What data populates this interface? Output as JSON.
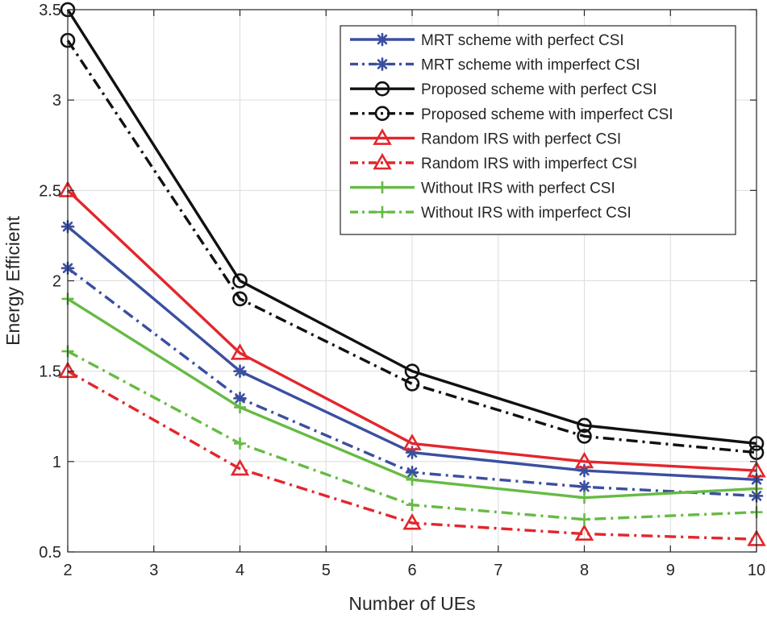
{
  "chart_data": {
    "type": "line",
    "title": "",
    "xlabel": "Number of UEs",
    "ylabel": "Energy Efficient",
    "xlim": [
      2,
      10
    ],
    "ylim": [
      0.5,
      3.5
    ],
    "xticks": [
      2,
      3,
      4,
      5,
      6,
      7,
      8,
      9,
      10
    ],
    "yticks": [
      0.5,
      1,
      1.5,
      2,
      2.5,
      3,
      3.5
    ],
    "xtick_labels": [
      "2",
      "3",
      "4",
      "5",
      "6",
      "7",
      "8",
      "9",
      "10"
    ],
    "ytick_labels": [
      "0.5",
      "1",
      "1.5",
      "2",
      "2.5",
      "3",
      "3.5"
    ],
    "grid": true,
    "legend_position": "top-right",
    "x": [
      2,
      4,
      6,
      8,
      10
    ],
    "series": [
      {
        "name": "MRT scheme with perfect CSI",
        "color": "#3b4fa0",
        "dash": "solid",
        "marker": "asterisk",
        "values": [
          2.3,
          1.5,
          1.05,
          0.95,
          0.9
        ]
      },
      {
        "name": "MRT scheme with imperfect CSI",
        "color": "#3b4fa0",
        "dash": "dashdot",
        "marker": "asterisk",
        "values": [
          2.07,
          1.35,
          0.94,
          0.86,
          0.81
        ]
      },
      {
        "name": "Proposed scheme with perfect CSI",
        "color": "#111111",
        "dash": "solid",
        "marker": "circle",
        "values": [
          3.5,
          2.0,
          1.5,
          1.2,
          1.1
        ]
      },
      {
        "name": "Proposed scheme with imperfect CSI",
        "color": "#111111",
        "dash": "dashdot",
        "marker": "circle",
        "values": [
          3.33,
          1.9,
          1.43,
          1.14,
          1.05
        ]
      },
      {
        "name": "Random IRS with perfect CSI",
        "color": "#e3262c",
        "dash": "solid",
        "marker": "triangle",
        "values": [
          2.5,
          1.6,
          1.1,
          1.0,
          0.95
        ]
      },
      {
        "name": "Random IRS with imperfect CSI",
        "color": "#e3262c",
        "dash": "dashdot",
        "marker": "triangle",
        "values": [
          1.5,
          0.96,
          0.66,
          0.6,
          0.57
        ]
      },
      {
        "name": "Without IRS with perfect CSI",
        "color": "#66bb44",
        "dash": "solid",
        "marker": "plus",
        "values": [
          1.9,
          1.3,
          0.9,
          0.8,
          0.85
        ]
      },
      {
        "name": "Without IRS with imperfect CSI",
        "color": "#66bb44",
        "dash": "dashdot",
        "marker": "plus",
        "values": [
          1.61,
          1.1,
          0.76,
          0.68,
          0.72
        ]
      }
    ]
  }
}
